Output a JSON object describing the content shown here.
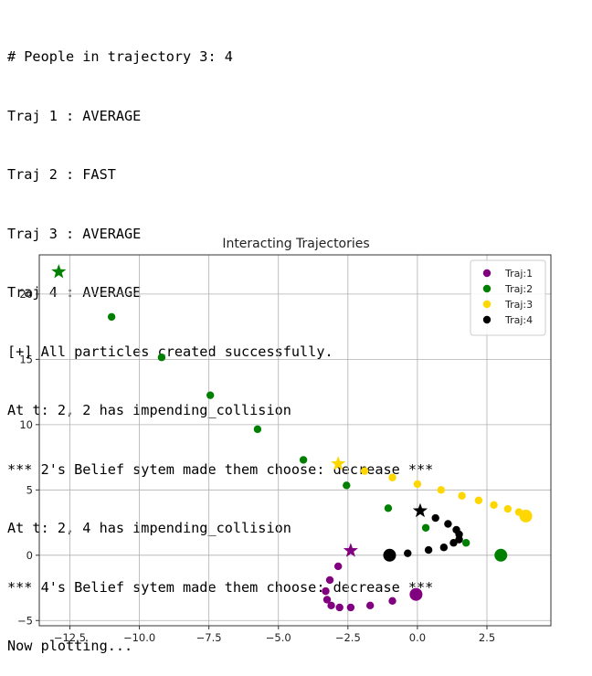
{
  "console": {
    "lines": [
      "# People in trajectory 3: 4",
      "Traj 1 : AVERAGE",
      "Traj 2 : FAST",
      "Traj 3 : AVERAGE",
      "Traj 4 : AVERAGE",
      "[+] All particles created successfully.",
      "At t: 2, 2 has impending_collision",
      "*** 2's Belief sytem made them choose: decrease ***",
      "At t: 2, 4 has impending_collision",
      "*** 4's Belief sytem made them choose: decrease ***",
      "Now plotting..."
    ]
  },
  "chart_data": {
    "type": "scatter",
    "title": "Interacting Trajectories",
    "xlabel": "",
    "ylabel": "",
    "xlim": [
      -13.6,
      4.8
    ],
    "ylim": [
      -5.4,
      23.0
    ],
    "xticks": [
      -12.5,
      -10.0,
      -7.5,
      -5.0,
      -2.5,
      0.0,
      2.5
    ],
    "xtick_labels": [
      "−12.5",
      "−10.0",
      "−7.5",
      "−5.0",
      "−2.5",
      "0.0",
      "2.5"
    ],
    "yticks": [
      -5,
      0,
      5,
      10,
      15,
      20
    ],
    "ytick_labels": [
      "−5",
      "0",
      "5",
      "10",
      "15",
      "20"
    ],
    "grid": true,
    "legend_position": "top-right",
    "series": [
      {
        "name": "Traj:1",
        "color": "#800080",
        "start": [
          -0.05,
          -3.0
        ],
        "end": [
          -2.4,
          0.35
        ],
        "points": [
          [
            -0.9,
            -3.5
          ],
          [
            -1.7,
            -3.85
          ],
          [
            -2.4,
            -4.0
          ],
          [
            -2.8,
            -4.0
          ],
          [
            -3.1,
            -3.85
          ],
          [
            -3.25,
            -3.4
          ],
          [
            -3.3,
            -2.75
          ],
          [
            -3.15,
            -1.9
          ],
          [
            -2.85,
            -0.85
          ]
        ]
      },
      {
        "name": "Traj:2",
        "color": "#008000",
        "start": [
          3.0,
          0.0
        ],
        "end": [
          -12.9,
          21.7
        ],
        "points": [
          [
            1.75,
            0.95
          ],
          [
            0.3,
            2.1
          ],
          [
            -1.05,
            3.6
          ],
          [
            -2.55,
            5.35
          ],
          [
            -4.1,
            7.3
          ],
          [
            -5.75,
            9.65
          ],
          [
            -7.45,
            12.25
          ],
          [
            -9.2,
            15.15
          ],
          [
            -11.0,
            18.25
          ]
        ]
      },
      {
        "name": "Traj:3",
        "color": "#FFD700",
        "start": [
          3.9,
          3.0
        ],
        "end": [
          -2.85,
          7.0
        ],
        "points": [
          [
            3.65,
            3.3
          ],
          [
            3.25,
            3.55
          ],
          [
            2.75,
            3.85
          ],
          [
            2.2,
            4.2
          ],
          [
            1.6,
            4.55
          ],
          [
            0.85,
            5.0
          ],
          [
            0.0,
            5.45
          ],
          [
            -0.9,
            5.95
          ],
          [
            -1.9,
            6.45
          ]
        ]
      },
      {
        "name": "Traj:4",
        "color": "#000000",
        "start": [
          -1.0,
          0.0
        ],
        "end": [
          0.1,
          3.4
        ],
        "points": [
          [
            -0.35,
            0.15
          ],
          [
            0.4,
            0.4
          ],
          [
            0.95,
            0.6
          ],
          [
            1.3,
            0.95
          ],
          [
            1.5,
            1.2
          ],
          [
            1.5,
            1.6
          ],
          [
            1.4,
            1.95
          ],
          [
            1.1,
            2.4
          ],
          [
            0.65,
            2.85
          ]
        ]
      }
    ]
  }
}
